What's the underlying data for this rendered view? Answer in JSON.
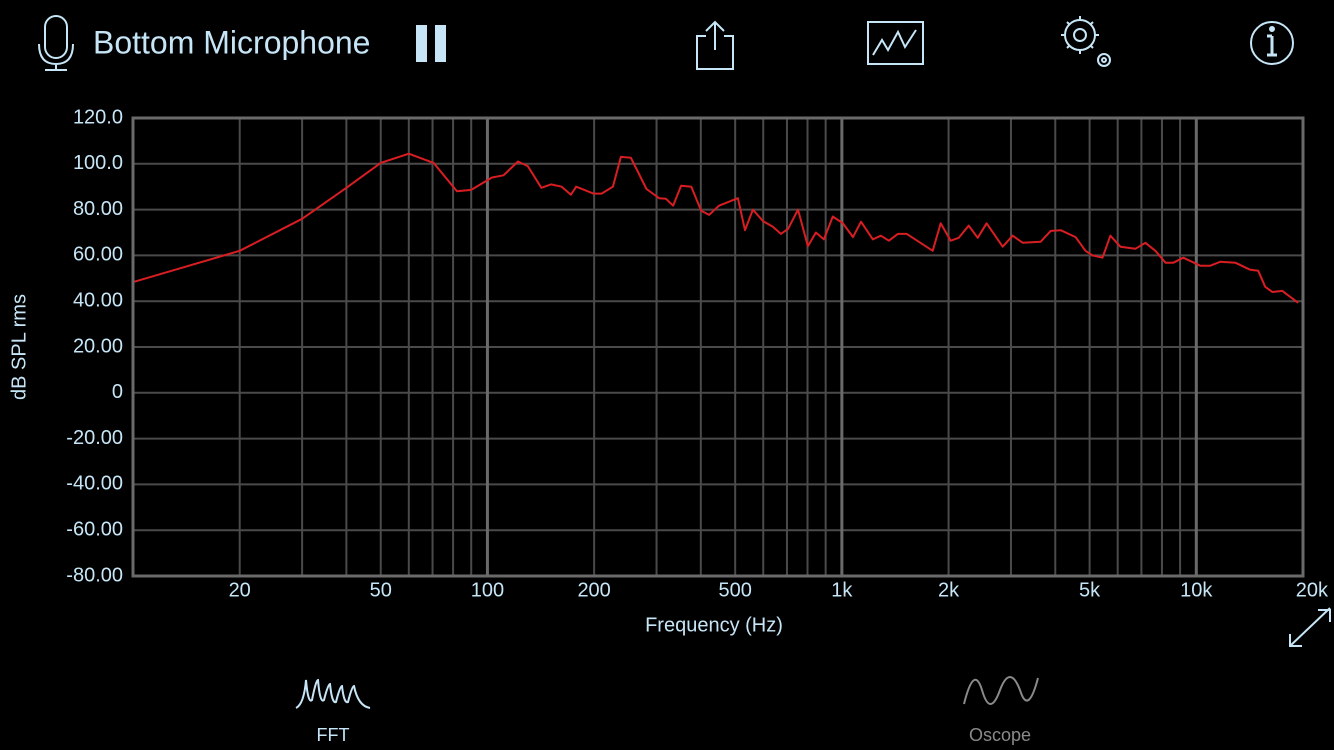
{
  "header": {
    "title": "Bottom Microphone"
  },
  "chart_data": {
    "type": "line",
    "x_label": "Frequency (Hz)",
    "y_label": "dB SPL rms",
    "x_log": true,
    "grid": true,
    "color": "#d81e22",
    "xlim": [
      10,
      20000
    ],
    "xticks": [
      20,
      50,
      100,
      200,
      500,
      {
        "value": 1000,
        "label": "1k"
      },
      {
        "value": 2000,
        "label": "2k"
      },
      {
        "value": 5000,
        "label": "5k"
      },
      {
        "value": 10000,
        "label": "10k"
      },
      {
        "value": 20000,
        "label": "20k"
      }
    ],
    "x_minor_ticks": [
      30,
      40,
      60,
      70,
      80,
      90,
      300,
      400,
      600,
      700,
      800,
      900,
      3000,
      4000,
      6000,
      7000,
      8000,
      9000
    ],
    "ylim": [
      -80,
      120
    ],
    "yticks": [
      {
        "value": 120,
        "label": "120.0"
      },
      {
        "value": 100,
        "label": "100.0"
      },
      {
        "value": 80,
        "label": "80.00"
      },
      {
        "value": 60,
        "label": "60.00"
      },
      {
        "value": 40,
        "label": "40.00"
      },
      {
        "value": 20,
        "label": "20.00"
      },
      0,
      {
        "value": -20,
        "label": "-20.00"
      },
      {
        "value": -40,
        "label": "-40.00"
      },
      {
        "value": -60,
        "label": "-60.00"
      },
      {
        "value": -80,
        "label": "-80.00"
      }
    ],
    "x": [
      10.1,
      20,
      30,
      40,
      50,
      60,
      70.5,
      82,
      90,
      103,
      111,
      122,
      130,
      142,
      151,
      162,
      172,
      178,
      199,
      210,
      226,
      238,
      254,
      281,
      305,
      319,
      334,
      352,
      376,
      401,
      422,
      450,
      509,
      533,
      561,
      599,
      639,
      673,
      705,
      752,
      802,
      845,
      890,
      943,
      1007,
      1075,
      1132,
      1223,
      1288,
      1357,
      1438,
      1525,
      1804,
      1900,
      2028,
      2137,
      2280,
      2417,
      2561,
      2843,
      3034,
      3238,
      3638,
      3882,
      4143,
      4564,
      4867,
      5094,
      5436,
      5723,
      6109,
      6732,
      7184,
      7668,
      8184,
      8617,
      9191,
      10256,
      10950,
      11680,
      12880,
      14200,
      14950,
      15650,
      16380,
      17480,
      19380
    ],
    "values": [
      48.5,
      62,
      76,
      89.5,
      100.4,
      104.4,
      100.4,
      88,
      88.6,
      94,
      95,
      101,
      99,
      89.5,
      91,
      90,
      86.5,
      90,
      87,
      87,
      90,
      103,
      102.6,
      89,
      85,
      84.7,
      81.7,
      90.4,
      90,
      79.5,
      77.7,
      81.7,
      85,
      71,
      80,
      75,
      72.5,
      69.4,
      71.6,
      80,
      64,
      70,
      67,
      77,
      74,
      68,
      74.7,
      67,
      68.6,
      66.4,
      69.4,
      69.4,
      62,
      74,
      66.4,
      67.7,
      73,
      67.7,
      74,
      63.8,
      68.6,
      65.5,
      66,
      70.7,
      71,
      68,
      62,
      60,
      59,
      68.6,
      63.8,
      62.9,
      65.5,
      62,
      56.8,
      56.8,
      59,
      55.5,
      55.5,
      57.2,
      56.8,
      53.7,
      53.3,
      46.3,
      44,
      44.5,
      39.3
    ]
  },
  "tabs": [
    {
      "label": "FFT"
    },
    {
      "label": "Oscope"
    }
  ]
}
